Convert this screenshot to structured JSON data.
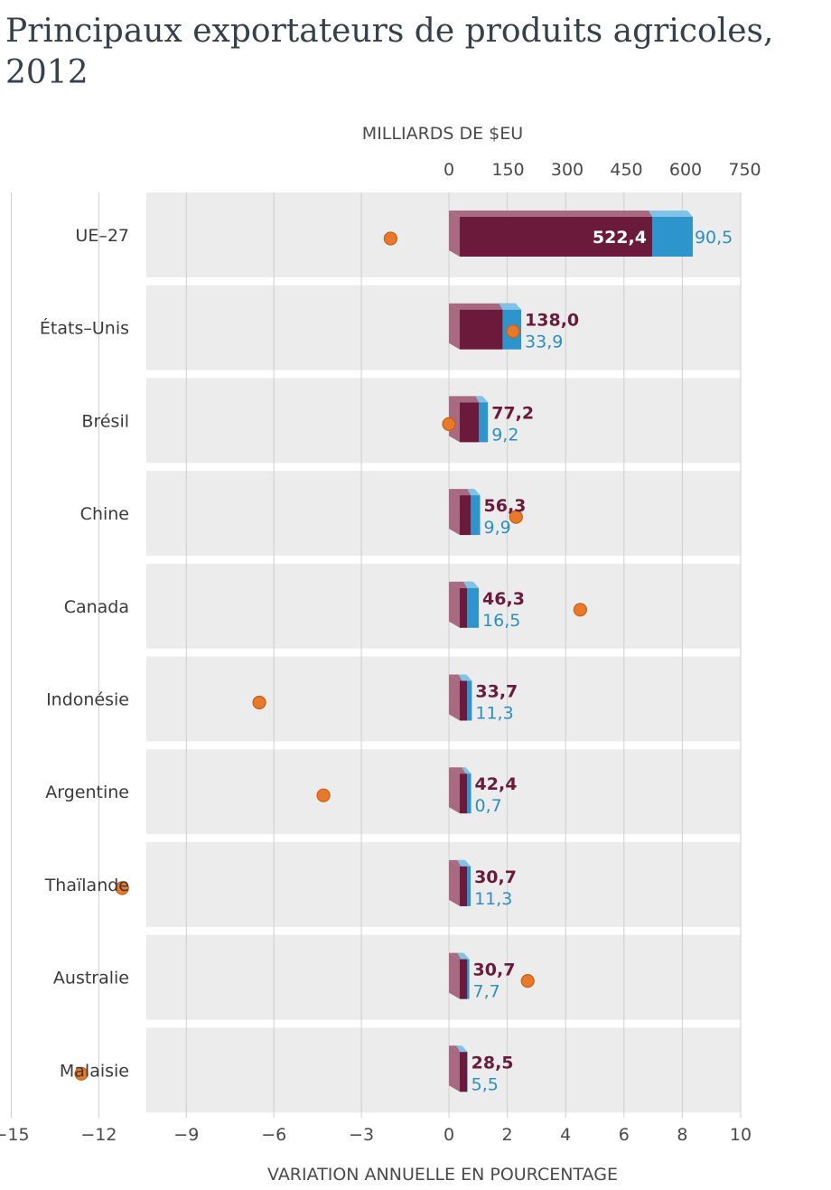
{
  "title": "Principaux exportateurs de produits agricoles, 2012",
  "chart_data": {
    "type": "bar",
    "title": "Principaux exportateurs de produits agricoles, 2012",
    "top_axis": {
      "label": "MILLIARDS DE $EU",
      "range": [
        0,
        750
      ],
      "ticks": [
        "0",
        "150",
        "300",
        "450",
        "600",
        "750"
      ]
    },
    "bottom_axis": {
      "label": "VARIATION ANNUELLE EN POURCENTAGE",
      "range": [
        -15,
        10
      ],
      "ticks": [
        "−15",
        "−12",
        "−9",
        "−6",
        "−3",
        "0",
        "2",
        "4",
        "6",
        "8",
        "10"
      ]
    },
    "categories": [
      "UE–27",
      "États–Unis",
      "Brésil",
      "Chine",
      "Canada",
      "Indonésie",
      "Argentine",
      "Thaïlande",
      "Australie",
      "Malaisie"
    ],
    "series": [
      {
        "values": [
          522.4,
          138.0,
          77.2,
          56.3,
          46.3,
          33.7,
          42.4,
          30.7,
          30.7,
          28.5
        ],
        "labels": [
          "522,4",
          "138,0",
          "77,2",
          "56,3",
          "46,3",
          "33,7",
          "42,4",
          "30,7",
          "30,7",
          "28,5"
        ]
      },
      {
        "values": [
          90.5,
          33.9,
          9.2,
          9.9,
          16.5,
          11.3,
          0.7,
          11.3,
          7.7,
          5.5
        ],
        "labels": [
          "90,5",
          "33,9",
          "9,2",
          "9,9",
          "16,5",
          "11,3",
          "0,7",
          "11,3",
          "7,7",
          "5,5"
        ]
      },
      {
        "values": [
          -2.0,
          2.2,
          0.0,
          2.3,
          4.5,
          -6.5,
          -4.3,
          -11.2,
          2.7,
          -12.6
        ]
      }
    ],
    "colors": {
      "main": "#6b1a3b",
      "main_side": "#a86a80",
      "secondary": "#2e95cc",
      "secondary_side": "#7fc3e8",
      "dot": "#e8782a",
      "row_bg": "#ececec",
      "grid": "#cfcfcf"
    },
    "grid": true,
    "legend": "none"
  }
}
